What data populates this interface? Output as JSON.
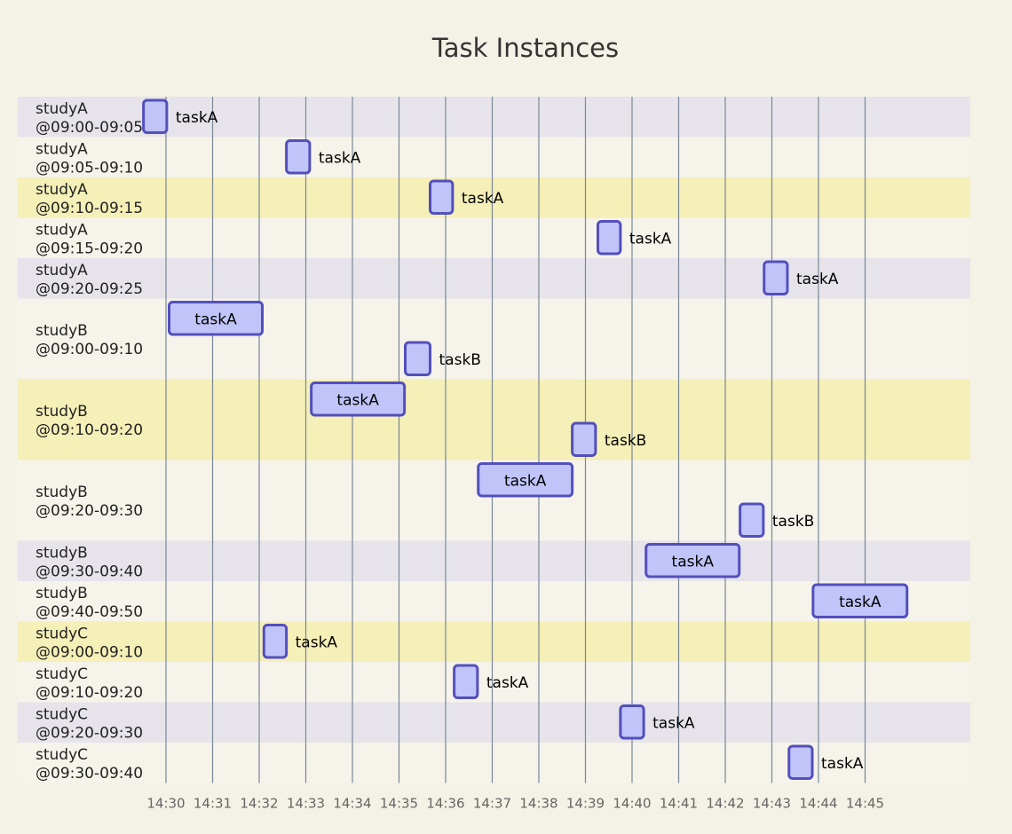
{
  "chart_data": {
    "type": "gantt",
    "title": "Task Instances",
    "axis": {
      "start": "14:30",
      "end": "14:45",
      "ticks": [
        "14:30",
        "14:31",
        "14:32",
        "14:33",
        "14:34",
        "14:35",
        "14:36",
        "14:37",
        "14:38",
        "14:39",
        "14:40",
        "14:41",
        "14:42",
        "14:43",
        "14:44",
        "14:45"
      ]
    },
    "colors": {
      "section_bands": [
        "#e6e4ea",
        "#f5f3ea",
        "#f5efb8",
        "#f5f3ea"
      ],
      "bar_fill": "#c0c4f8",
      "bar_stroke": "#534fbc",
      "grid": "#7a8797"
    },
    "sections": [
      {
        "study": "studyA",
        "window": "@09:00-09:05",
        "tasks": [
          {
            "name": "taskA",
            "start": "14:29:31",
            "end": "14:30:01"
          }
        ]
      },
      {
        "study": "studyA",
        "window": "@09:05-09:10",
        "tasks": [
          {
            "name": "taskA",
            "start": "14:32:35",
            "end": "14:33:05"
          }
        ]
      },
      {
        "study": "studyA",
        "window": "@09:10-09:15",
        "tasks": [
          {
            "name": "taskA",
            "start": "14:35:40",
            "end": "14:36:09"
          }
        ]
      },
      {
        "study": "studyA",
        "window": "@09:15-09:20",
        "tasks": [
          {
            "name": "taskA",
            "start": "14:39:16",
            "end": "14:39:45"
          }
        ]
      },
      {
        "study": "studyA",
        "window": "@09:20-09:25",
        "tasks": [
          {
            "name": "taskA",
            "start": "14:42:50",
            "end": "14:43:20"
          }
        ]
      },
      {
        "study": "studyB",
        "window": "@09:00-09:10",
        "tasks": [
          {
            "name": "taskA",
            "start": "14:30:04",
            "end": "14:32:04"
          },
          {
            "name": "taskB",
            "start": "14:35:08",
            "end": "14:35:40"
          }
        ]
      },
      {
        "study": "studyB",
        "window": "@09:10-09:20",
        "tasks": [
          {
            "name": "taskA",
            "start": "14:33:07",
            "end": "14:35:07"
          },
          {
            "name": "taskB",
            "start": "14:38:43",
            "end": "14:39:13"
          }
        ]
      },
      {
        "study": "studyB",
        "window": "@09:20-09:30",
        "tasks": [
          {
            "name": "taskA",
            "start": "14:36:42",
            "end": "14:38:43"
          },
          {
            "name": "taskB",
            "start": "14:42:19",
            "end": "14:42:49"
          }
        ]
      },
      {
        "study": "studyB",
        "window": "@09:30-09:40",
        "tasks": [
          {
            "name": "taskA",
            "start": "14:40:18",
            "end": "14:42:18"
          }
        ]
      },
      {
        "study": "studyB",
        "window": "@09:40-09:50",
        "tasks": [
          {
            "name": "taskA",
            "start": "14:43:53",
            "end": "14:45:54"
          }
        ]
      },
      {
        "study": "studyC",
        "window": "@09:00-09:10",
        "tasks": [
          {
            "name": "taskA",
            "start": "14:32:06",
            "end": "14:32:35"
          }
        ]
      },
      {
        "study": "studyC",
        "window": "@09:10-09:20",
        "tasks": [
          {
            "name": "taskA",
            "start": "14:36:11",
            "end": "14:36:41"
          }
        ]
      },
      {
        "study": "studyC",
        "window": "@09:20-09:30",
        "tasks": [
          {
            "name": "taskA",
            "start": "14:39:45",
            "end": "14:40:15"
          }
        ]
      },
      {
        "study": "studyC",
        "window": "@09:30-09:40",
        "tasks": [
          {
            "name": "taskA",
            "start": "14:43:22",
            "end": "14:43:52"
          }
        ]
      }
    ]
  }
}
